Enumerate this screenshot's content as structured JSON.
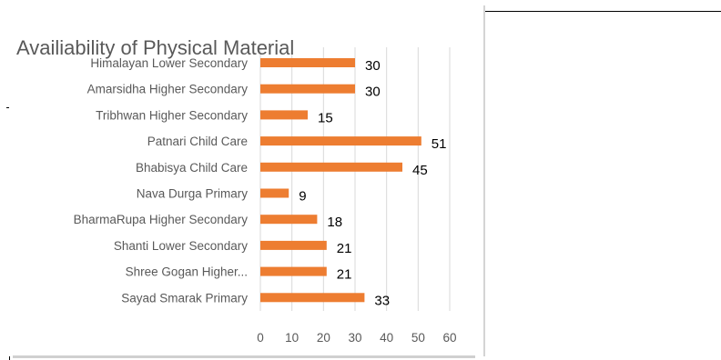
{
  "chart_data": {
    "type": "bar",
    "orientation": "horizontal",
    "title": "Availiability of Physical Material",
    "xlabel": "",
    "ylabel": "",
    "categories": [
      "Himalayan Lower Secondary",
      "Amarsidha Higher Secondary",
      "Tribhwan Higher Secondary",
      "Patnari Child Care",
      "Bhabisya Child Care",
      "Nava Durga Primary",
      "BharmaRupa Higher Secondary",
      "Shanti Lower Secondary",
      "Shree Gogan  Higher...",
      "Sayad Smarak Primary"
    ],
    "values": [
      30,
      30,
      15,
      51,
      45,
      9,
      18,
      21,
      21,
      33
    ],
    "data_labels": [
      "30",
      "30",
      "15",
      "51",
      "45",
      "9",
      "18",
      "21",
      "21",
      "33"
    ],
    "xlim": [
      0,
      60
    ],
    "xticks": [
      "0",
      "10",
      "20",
      "30",
      "40",
      "50",
      "60"
    ],
    "grid": "vertical",
    "legend": "none",
    "bar_color": "#ED7D31"
  }
}
